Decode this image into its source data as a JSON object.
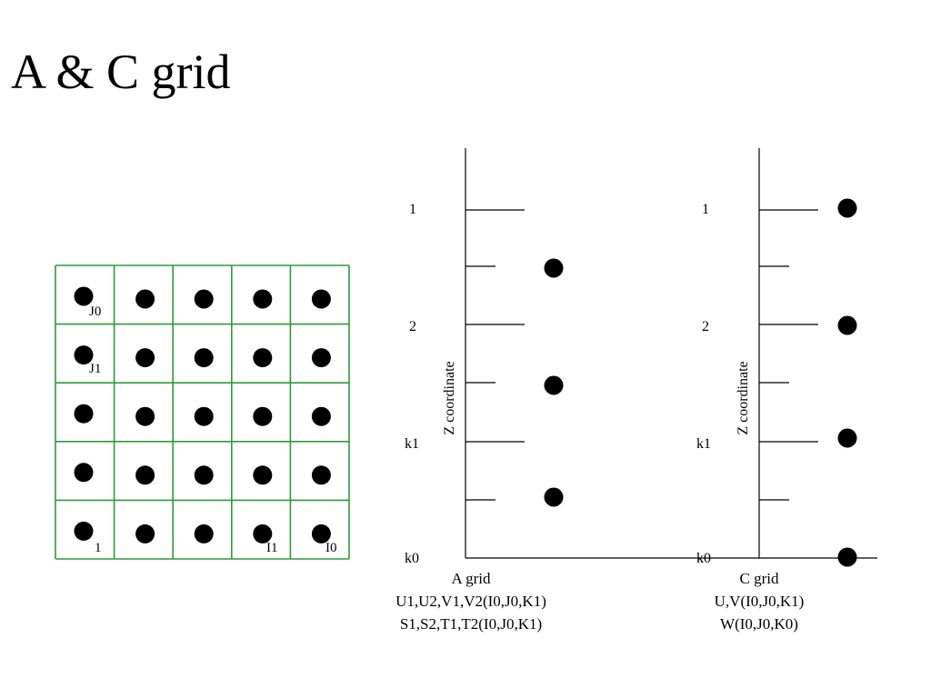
{
  "title": "A & C grid",
  "grid_panel": {
    "rows": 5,
    "cols": 5,
    "line_color": "#2e9a3a",
    "labels": {
      "j0": "J0",
      "j1": "J1",
      "i_first": "1",
      "i1": "I1",
      "i0": "I0"
    }
  },
  "a_grid": {
    "levels": {
      "top": "1",
      "second": "2",
      "k1": "k1",
      "k0": "k0"
    },
    "axis_label": "Z coordinate",
    "caption": [
      "A grid",
      "U1,U2,V1,V2(I0,J0,K1)",
      "S1,S2,T1,T2(I0,J0,K1)"
    ]
  },
  "c_grid": {
    "levels": {
      "top": "1",
      "second": "2",
      "k1": "k1",
      "k0": "k0"
    },
    "axis_label": "Z coordinate",
    "caption": [
      "C grid",
      "U,V(I0,J0,K1)",
      "W(I0,J0,K0)"
    ]
  }
}
